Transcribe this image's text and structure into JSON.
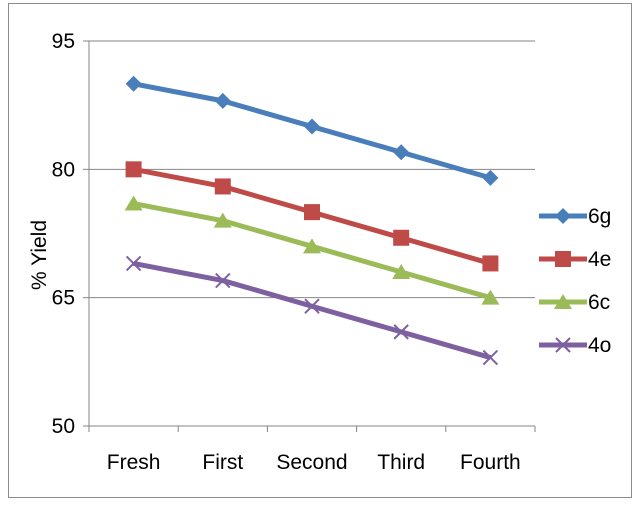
{
  "chart_data": {
    "type": "line",
    "title": "",
    "xlabel": "",
    "ylabel": "% Yield",
    "categories": [
      "Fresh",
      "First",
      "Second",
      "Third",
      "Fourth"
    ],
    "ylim": [
      50,
      95
    ],
    "yticks": [
      50,
      65,
      80,
      95
    ],
    "grid": true,
    "legend_position": "right",
    "series": [
      {
        "name": "6g",
        "values": [
          90,
          88,
          85,
          82,
          79
        ],
        "color": "#4a7ebb",
        "marker": "diamond"
      },
      {
        "name": "4e",
        "values": [
          80,
          78,
          75,
          72,
          69
        ],
        "color": "#be4b48",
        "marker": "square"
      },
      {
        "name": "6c",
        "values": [
          76,
          74,
          71,
          68,
          65
        ],
        "color": "#9bbb59",
        "marker": "triangle"
      },
      {
        "name": "4o",
        "values": [
          69,
          67,
          64,
          61,
          58
        ],
        "color": "#7d60a0",
        "marker": "x"
      }
    ]
  }
}
